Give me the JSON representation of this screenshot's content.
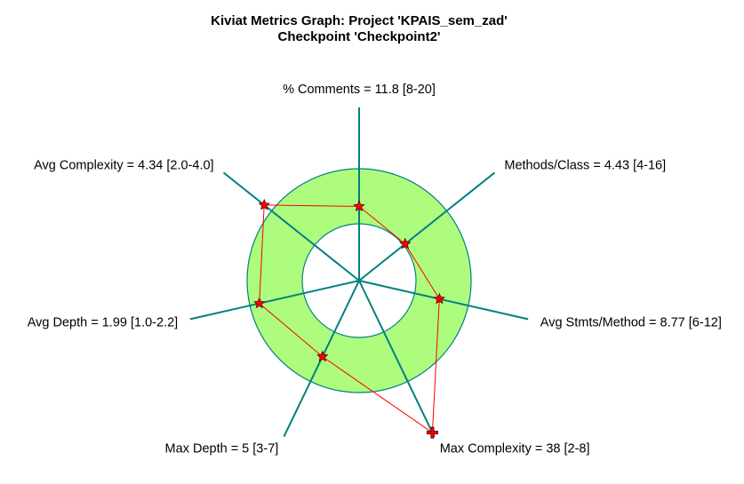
{
  "chart_data": {
    "type": "radar",
    "title": "Kiviat Metrics Graph: Project 'KPAIS_sem_zad'",
    "subtitle": "Checkpoint 'Checkpoint2'",
    "colors": {
      "band_fill": "#adfc7e",
      "band_stroke": "#008080",
      "axis": "#008080",
      "polygon": "#ff0000",
      "marker": "#ff0000",
      "marker_stroke": "#660000"
    },
    "axes": [
      {
        "label": "% Comments = 11.8 [8-20]",
        "value": 11.8,
        "min": 8,
        "max": 20,
        "out_of_range": false
      },
      {
        "label": "Methods/Class = 4.43 [4-16]",
        "value": 4.43,
        "min": 4,
        "max": 16,
        "out_of_range": false
      },
      {
        "label": "Avg Stmts/Method = 8.77 [6-12]",
        "value": 8.77,
        "min": 6,
        "max": 12,
        "out_of_range": false
      },
      {
        "label": "Max Complexity = 38 [2-8]",
        "value": 38,
        "min": 2,
        "max": 8,
        "out_of_range": true
      },
      {
        "label": "Max Depth = 5 [3-7]",
        "value": 5,
        "min": 3,
        "max": 7,
        "out_of_range": false
      },
      {
        "label": "Avg Depth = 1.99 [1.0-2.2]",
        "value": 1.99,
        "min": 1.0,
        "max": 2.2,
        "out_of_range": false
      },
      {
        "label": "Avg Complexity = 4.34 [2.0-4.0]",
        "value": 4.34,
        "min": 2.0,
        "max": 4.0,
        "out_of_range": true
      }
    ]
  }
}
